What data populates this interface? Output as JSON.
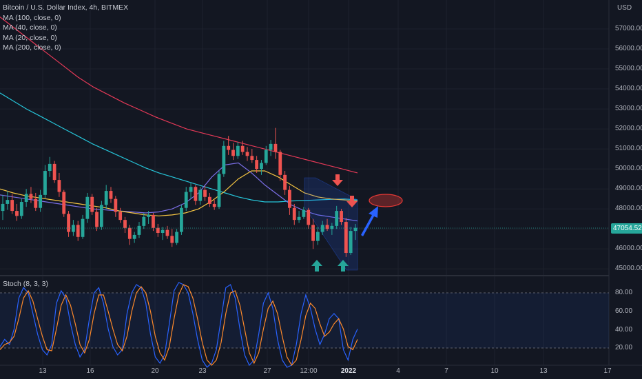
{
  "legend": {
    "title": "Bitcoin / U.S. Dollar Index, 4h, BITMEX",
    "ma1": "MA (100, close, 0)",
    "ma2": "MA (40, close, 0)",
    "ma3": "MA (20, close, 0)",
    "ma4": "MA (200, close, 0)"
  },
  "currency": "USD",
  "price_axis": [
    "57000.00",
    "56000.00",
    "55000.00",
    "54000.00",
    "53000.00",
    "52000.00",
    "51000.00",
    "50000.00",
    "49000.00",
    "48000.00",
    "46000.00",
    "45000.00"
  ],
  "last_price": "47054.52",
  "stoch": {
    "label": "Stoch (8, 3, 3)",
    "axis": [
      "80.00",
      "60.00",
      "40.00",
      "20.00"
    ]
  },
  "time_axis": [
    "13",
    "16",
    "20",
    "23",
    "27",
    "12:00",
    "2022",
    "4",
    "7",
    "10",
    "13",
    "17"
  ],
  "colors": {
    "background": "#131722",
    "up": "#26a69a",
    "down": "#ef5350",
    "ma100": "#26c6da",
    "ma40": "#7b6fe8",
    "ma20": "#f5c542",
    "ma200": "#e53957",
    "stoch_k": "#2962ff",
    "stoch_d": "#ff8a2b",
    "annotation_blue": "#2962ff",
    "ellipse": "#e53935"
  },
  "chart_data": {
    "type": "candlestick",
    "symbol": "Bitcoin / U.S. Dollar Index",
    "interval": "4h",
    "exchange": "BITMEX",
    "ylim": [
      44800,
      58200
    ],
    "last_price": 47054.52,
    "candles": [
      [
        47900,
        48700,
        47450,
        48250
      ],
      [
        48250,
        48900,
        47950,
        48450
      ],
      [
        48450,
        48750,
        47750,
        47900
      ],
      [
        47900,
        48250,
        47400,
        47650
      ],
      [
        47650,
        48500,
        47500,
        48350
      ],
      [
        48350,
        49000,
        48100,
        48750
      ],
      [
        48750,
        49100,
        48300,
        48500
      ],
      [
        48500,
        48800,
        47900,
        48050
      ],
      [
        48050,
        48950,
        47850,
        48700
      ],
      [
        48700,
        50200,
        48550,
        49900
      ],
      [
        49900,
        50600,
        49600,
        50250
      ],
      [
        50250,
        50400,
        49300,
        49450
      ],
      [
        49450,
        49800,
        48600,
        48850
      ],
      [
        48850,
        48950,
        47600,
        47750
      ],
      [
        47750,
        47900,
        46600,
        46850
      ],
      [
        46850,
        47450,
        46650,
        47200
      ],
      [
        47200,
        47400,
        46400,
        46600
      ],
      [
        46600,
        47700,
        46500,
        47500
      ],
      [
        47500,
        48800,
        47300,
        48600
      ],
      [
        48600,
        48750,
        47700,
        47850
      ],
      [
        47850,
        48050,
        46900,
        47100
      ],
      [
        47100,
        48400,
        46950,
        48200
      ],
      [
        48200,
        49200,
        48000,
        48900
      ],
      [
        48900,
        49100,
        48300,
        48500
      ],
      [
        48500,
        48650,
        47600,
        47850
      ],
      [
        47850,
        48050,
        47300,
        47450
      ],
      [
        47450,
        47600,
        46800,
        47050
      ],
      [
        47050,
        47200,
        46200,
        46500
      ],
      [
        46500,
        46850,
        46300,
        46700
      ],
      [
        46700,
        47350,
        46550,
        47150
      ],
      [
        47150,
        47800,
        47000,
        47600
      ],
      [
        47600,
        47900,
        47250,
        47700
      ],
      [
        47700,
        47800,
        46900,
        47050
      ],
      [
        47050,
        47250,
        46600,
        46800
      ],
      [
        46800,
        47100,
        46450,
        46950
      ],
      [
        46950,
        47150,
        46500,
        46650
      ],
      [
        46650,
        47000,
        46100,
        46300
      ],
      [
        46300,
        47000,
        46200,
        46850
      ],
      [
        46850,
        48200,
        46700,
        48050
      ],
      [
        48050,
        49100,
        47900,
        48850
      ],
      [
        48850,
        49300,
        48500,
        49100
      ],
      [
        49100,
        49200,
        48200,
        48400
      ],
      [
        48400,
        49100,
        48200,
        48950
      ],
      [
        48950,
        49150,
        48400,
        48600
      ],
      [
        48600,
        48800,
        48100,
        48250
      ],
      [
        48250,
        48450,
        47950,
        48100
      ],
      [
        48100,
        49900,
        48000,
        49750
      ],
      [
        49750,
        51400,
        49600,
        51150
      ],
      [
        51150,
        51650,
        50700,
        50950
      ],
      [
        50950,
        51300,
        50450,
        50650
      ],
      [
        50650,
        51350,
        50500,
        51150
      ],
      [
        51150,
        51400,
        50700,
        50850
      ],
      [
        50850,
        51100,
        50400,
        50650
      ],
      [
        50650,
        51000,
        50300,
        50450
      ],
      [
        50450,
        50650,
        49800,
        50000
      ],
      [
        50000,
        50450,
        49700,
        50300
      ],
      [
        50300,
        51150,
        50200,
        50950
      ],
      [
        50950,
        51450,
        50650,
        51250
      ],
      [
        51250,
        52050,
        50500,
        50850
      ],
      [
        50850,
        50950,
        49400,
        49700
      ],
      [
        49700,
        49900,
        48700,
        48950
      ],
      [
        48950,
        49150,
        47700,
        48050
      ],
      [
        48050,
        48250,
        47200,
        47450
      ],
      [
        47450,
        47900,
        47300,
        47600
      ],
      [
        47600,
        48100,
        47500,
        47950
      ],
      [
        47950,
        48050,
        47000,
        47200
      ],
      [
        47200,
        47500,
        46000,
        46400
      ],
      [
        46400,
        47100,
        46200,
        46850
      ],
      [
        46850,
        47400,
        46700,
        47200
      ],
      [
        47200,
        47500,
        46900,
        47000
      ],
      [
        47000,
        47300,
        46700,
        47150
      ],
      [
        47150,
        48150,
        47000,
        47900
      ],
      [
        47900,
        48000,
        47200,
        47350
      ],
      [
        47350,
        47550,
        45600,
        45800
      ],
      [
        45800,
        47100,
        45700,
        46900
      ],
      [
        46900,
        47250,
        46450,
        47054.52
      ]
    ],
    "moving_averages": [
      {
        "name": "MA (100, close, 0)",
        "color": "#26c6da",
        "values": [
          53800,
          53400,
          53000,
          52650,
          52300,
          51950,
          51600,
          51250,
          50950,
          50650,
          50350,
          50050,
          49800,
          49600,
          49400,
          49200,
          49000,
          48800,
          48600,
          48450,
          48350,
          48350,
          48400,
          48420,
          48450,
          48480,
          48500,
          48450
        ]
      },
      {
        "name": "MA (40, close, 0)",
        "color": "#7b6fe8",
        "values": [
          48700,
          48600,
          48500,
          48400,
          48300,
          48200,
          48100,
          48000,
          47950,
          47900,
          47850,
          47800,
          47850,
          48000,
          48300,
          48800,
          49600,
          50200,
          50300,
          49800,
          49200,
          48700,
          48200,
          47900,
          47700,
          47600,
          47500,
          47400
        ]
      },
      {
        "name": "MA (20, close, 0)",
        "color": "#f5c542",
        "values": [
          49000,
          48800,
          48650,
          48550,
          48450,
          48350,
          48250,
          48150,
          48050,
          47900,
          47800,
          47700,
          47650,
          47700,
          47800,
          48000,
          48400,
          48900,
          49500,
          49900,
          49900,
          49600,
          49200,
          48800,
          48600,
          48500,
          48450,
          48400
        ]
      },
      {
        "name": "MA (200, close, 0)",
        "color": "#e53957",
        "values": [
          57600,
          57000,
          56400,
          55800,
          55200,
          54600,
          54100,
          53700,
          53300,
          52950,
          52600,
          52300,
          52000,
          51800,
          51600,
          51400,
          51200,
          51000,
          50800,
          50600,
          50400,
          50200,
          50000,
          49800
        ]
      }
    ],
    "stochastic": {
      "name": "Stoch (8, 3, 3)",
      "ylim": [
        0,
        100
      ],
      "bands": [
        20,
        80
      ],
      "k": [
        28,
        35,
        30,
        45,
        75,
        85,
        80,
        60,
        40,
        25,
        20,
        30,
        70,
        82,
        75,
        50,
        30,
        18,
        25,
        55,
        80,
        85,
        70,
        45,
        28,
        20,
        25,
        60,
        80,
        88,
        85,
        70,
        40,
        18,
        12,
        20,
        50,
        82,
        90,
        88,
        80,
        60,
        35,
        15,
        8,
        12,
        25,
        55,
        85,
        88,
        75,
        45,
        20,
        10,
        15,
        40,
        70,
        80,
        65,
        35,
        15,
        8,
        10,
        30,
        60,
        78,
        65,
        45,
        30,
        40,
        55,
        60,
        55,
        25,
        15,
        35,
        45
      ],
      "d": [
        25,
        30,
        32,
        38,
        55,
        75,
        82,
        72,
        55,
        38,
        25,
        24,
        45,
        68,
        78,
        68,
        50,
        30,
        22,
        35,
        60,
        78,
        78,
        62,
        45,
        30,
        24,
        38,
        62,
        80,
        86,
        80,
        62,
        38,
        22,
        15,
        28,
        55,
        78,
        88,
        86,
        75,
        55,
        32,
        15,
        10,
        15,
        32,
        60,
        80,
        82,
        68,
        45,
        22,
        12,
        22,
        45,
        65,
        72,
        60,
        38,
        18,
        10,
        15,
        35,
        58,
        70,
        65,
        50,
        38,
        42,
        50,
        55,
        45,
        28,
        25,
        35
      ]
    },
    "annotations": {
      "up_arrows": 2,
      "down_arrows": 2,
      "target_ellipse_price": 48250,
      "projection_arrow": "up"
    }
  }
}
